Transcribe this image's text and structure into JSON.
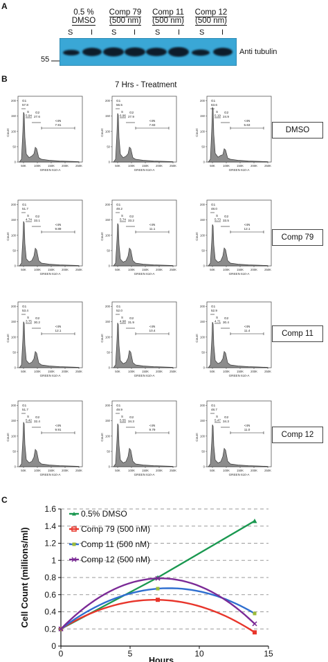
{
  "panel_a": {
    "letter": "A",
    "treatments": [
      {
        "line1": "0.5 %",
        "line2": "DMSO"
      },
      {
        "line1": "Comp 79",
        "line2": "(500 nm)"
      },
      {
        "line1": "Comp 11",
        "line2": "(500 nm)"
      },
      {
        "line1": "Comp 12",
        "line2": "(500 nm)"
      }
    ],
    "lanes": [
      "S",
      "I",
      "S",
      "I",
      "S",
      "I",
      "S",
      "I"
    ],
    "marker": "55",
    "antibody": "Anti tubulin"
  },
  "panel_b": {
    "letter": "B",
    "title": "7 Hrs - Treatment",
    "y_axis_label": "Count",
    "x_axis_label": "GREEN 610-A",
    "x_ticks": [
      "50K",
      "100K",
      "150K",
      "200K",
      "250K"
    ],
    "y_ticks": [
      "0",
      "50",
      "100",
      "150",
      "200"
    ],
    "gates": {
      "g1": "G1",
      "s": "S",
      "g2": "G2",
      "gt4n": "<4N"
    },
    "rows": [
      {
        "label": "DMSO",
        "histograms": [
          {
            "g1": "57.8",
            "s": "5.94",
            "g2": "27.6",
            "gt4n": "7.91"
          },
          {
            "g1": "56.5",
            "s": "6.96",
            "g2": "27.9",
            "gt4n": "7.83"
          },
          {
            "g1": "63.6",
            "s": "5.19",
            "g2": "24.9",
            "gt4n": "5.63"
          }
        ]
      },
      {
        "label": "Comp 79",
        "histograms": [
          {
            "g1": "51.7",
            "s": "4.74",
            "g2": "33.1",
            "gt4n": "9.89"
          },
          {
            "g1": "49.2",
            "s": "5.74",
            "g2": "33.2",
            "gt4n": "11.1"
          },
          {
            "g1": "48.0",
            "s": "5.73",
            "g2": "33.5",
            "gt4n": "12.1"
          }
        ]
      },
      {
        "label": "Comp 11",
        "histograms": [
          {
            "g1": "53.4",
            "s": "3.75",
            "g2": "30.2",
            "gt4n": "12.1"
          },
          {
            "g1": "52.0",
            "s": "4.98",
            "g2": "31.9",
            "gt4n": "10.4"
          },
          {
            "g1": "52.9",
            "s": "4.71",
            "g2": "30.4",
            "gt4n": "11.4"
          }
        ]
      },
      {
        "label": "Comp 12",
        "histograms": [
          {
            "g1": "51.7",
            "s": "5.42",
            "g2": "32.4",
            "gt4n": "9.91"
          },
          {
            "g1": "49.9",
            "s": "5.55",
            "g2": "34.3",
            "gt4n": "9.79"
          },
          {
            "g1": "48.7",
            "s": "5.47",
            "g2": "34.3",
            "gt4n": "11.0"
          }
        ]
      }
    ]
  },
  "panel_c": {
    "letter": "C"
  },
  "chart_data": {
    "type": "line",
    "title": "",
    "xlabel": "Hours",
    "ylabel": "Cell Count (millions/ml)",
    "xlim": [
      0,
      15
    ],
    "ylim": [
      0,
      1.6
    ],
    "x_ticks": [
      "0",
      "5",
      "10",
      "15"
    ],
    "y_ticks": [
      "0",
      "0.2",
      "0.4",
      "0.6",
      "0.8",
      "1",
      "1.2",
      "1.4",
      "1.6"
    ],
    "grid": "horizontal dashed",
    "legend": "top-left",
    "series": [
      {
        "name": "0.5% DMSO",
        "color": "#1a9850",
        "marker": "triangle",
        "x": [
          0,
          7,
          14
        ],
        "y": [
          0.2,
          0.8,
          1.46
        ]
      },
      {
        "name": "Comp 79 (500 nM)",
        "color": "#e8352b",
        "marker": "square",
        "x": [
          0,
          7,
          14
        ],
        "y": [
          0.2,
          0.54,
          0.16
        ]
      },
      {
        "name": "Comp 11 (500 nM)",
        "color": "#2f6fd0",
        "marker": "circle",
        "x": [
          0,
          7,
          14
        ],
        "y": [
          0.2,
          0.67,
          0.38
        ]
      },
      {
        "name": "Comp 12  (500 nM)",
        "color": "#7b2a96",
        "marker": "x",
        "x": [
          0,
          7,
          14
        ],
        "y": [
          0.2,
          0.79,
          0.26
        ]
      }
    ]
  }
}
